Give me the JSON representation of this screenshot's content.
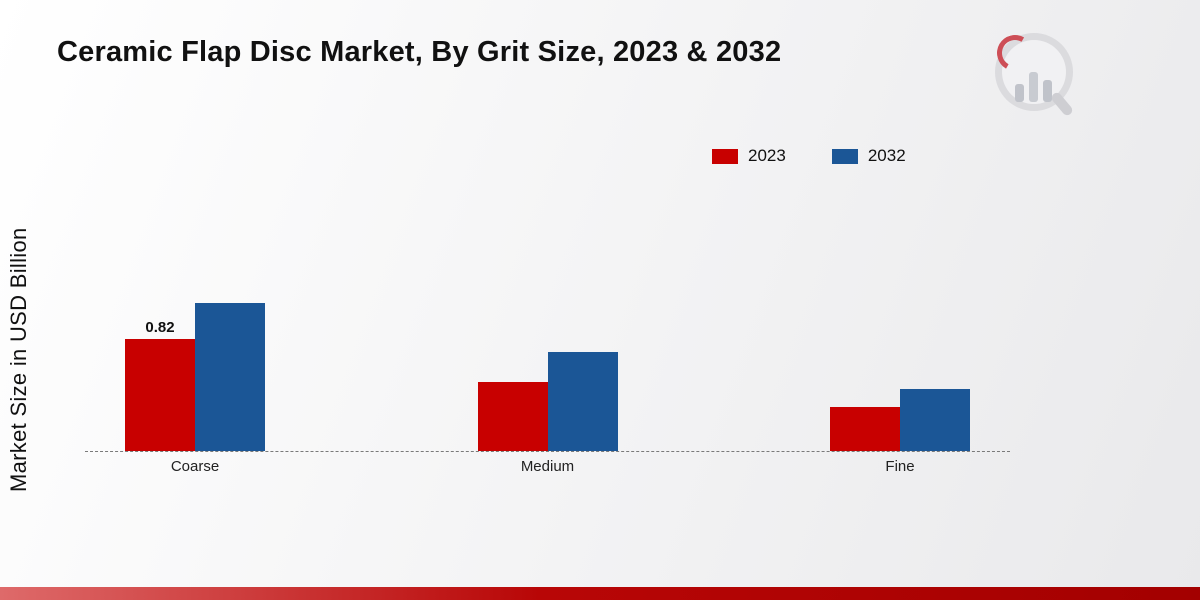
{
  "title": "Ceramic Flap Disc Market, By Grit Size, 2023 & 2032",
  "y_axis_label": "Market Size in USD Billion",
  "legend": [
    {
      "label": "2023",
      "color": "#c80000"
    },
    {
      "label": "2032",
      "color": "#1b5696"
    }
  ],
  "chart_data": {
    "type": "bar",
    "title": "Ceramic Flap Disc Market, By Grit Size, 2023 & 2032",
    "categories": [
      "Coarse",
      "Medium",
      "Fine"
    ],
    "series": [
      {
        "name": "2023",
        "color": "#c80000",
        "values": [
          0.82,
          0.5,
          0.32
        ]
      },
      {
        "name": "2032",
        "color": "#1b5696",
        "values": [
          1.08,
          0.72,
          0.45
        ]
      }
    ],
    "value_labels": [
      {
        "series": "2023",
        "category": "Coarse",
        "text": "0.82"
      }
    ],
    "xlabel": "",
    "ylabel": "Market Size in USD Billion",
    "ylim": [
      0,
      1.2
    ],
    "legend_position": "top-right",
    "grid": false,
    "baseline_style": "dashed"
  },
  "footer": {
    "gradient_start": "#de6a6a",
    "gradient_mid": "#b80606",
    "gradient_end": "#a30000"
  }
}
